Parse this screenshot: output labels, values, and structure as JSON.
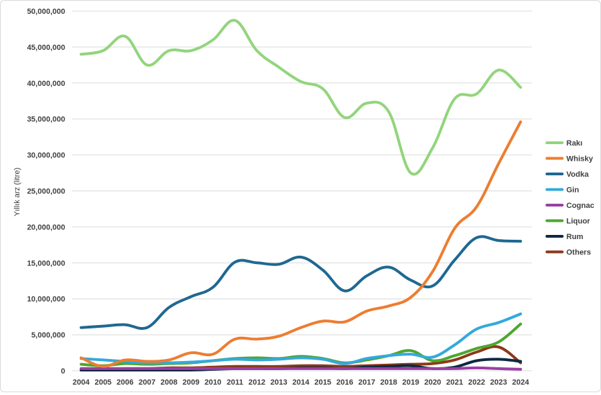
{
  "chart_data": {
    "type": "line",
    "title": "",
    "xlabel": "",
    "ylabel": "Yıllık arz (litre)",
    "x": [
      "2004",
      "2005",
      "2006",
      "2007",
      "2008",
      "2009",
      "2010",
      "2011",
      "2012",
      "2013",
      "2014",
      "2015",
      "2016",
      "2017",
      "2018",
      "2019",
      "2020",
      "2021",
      "2022",
      "2023",
      "2024"
    ],
    "ylim": [
      0,
      50000000
    ],
    "yticks": [
      0,
      5000000,
      10000000,
      15000000,
      20000000,
      25000000,
      30000000,
      35000000,
      40000000,
      45000000,
      50000000
    ],
    "ytick_labels": [
      "0",
      "5,000,000",
      "10,000,000",
      "15,000,000",
      "20,000,000",
      "25,000,000",
      "30,000,000",
      "35,000,000",
      "40,000,000",
      "45,000,000",
      "50,000,000"
    ],
    "grid": true,
    "legend_position": "right",
    "series": [
      {
        "name": "Rakı",
        "color": "#92d57c",
        "values": [
          44000000,
          44500000,
          46500000,
          42500000,
          44500000,
          44500000,
          46000000,
          48700000,
          44500000,
          42200000,
          40200000,
          39200000,
          35200000,
          37200000,
          36000000,
          27500000,
          31000000,
          37800000,
          38500000,
          41800000,
          39400000
        ]
      },
      {
        "name": "Whisky",
        "color": "#ed7d31",
        "values": [
          1800000,
          600000,
          1500000,
          1300000,
          1500000,
          2500000,
          2300000,
          4400000,
          4400000,
          4800000,
          6000000,
          6900000,
          6800000,
          8300000,
          9000000,
          10200000,
          13800000,
          19800000,
          22800000,
          28800000,
          34600000
        ]
      },
      {
        "name": "Vodka",
        "color": "#1f6891",
        "values": [
          6000000,
          6200000,
          6400000,
          6000000,
          8800000,
          10300000,
          11600000,
          15100000,
          15000000,
          14800000,
          15800000,
          14000000,
          11100000,
          13200000,
          14400000,
          12600000,
          11800000,
          15400000,
          18500000,
          18100000,
          18000000
        ]
      },
      {
        "name": "Gin",
        "color": "#34a9dc",
        "values": [
          1700000,
          1500000,
          1300000,
          1100000,
          1100000,
          1200000,
          1400000,
          1600000,
          1500000,
          1600000,
          1800000,
          1600000,
          1000000,
          1700000,
          2100000,
          2300000,
          1900000,
          3600000,
          5800000,
          6700000,
          7900000
        ]
      },
      {
        "name": "Cognac",
        "color": "#9b3fa4",
        "values": [
          300000,
          300000,
          300000,
          300000,
          300000,
          300000,
          300000,
          300000,
          300000,
          300000,
          300000,
          300000,
          300000,
          300000,
          300000,
          300000,
          300000,
          300000,
          400000,
          300000,
          200000
        ]
      },
      {
        "name": "Liquor",
        "color": "#4ea72e",
        "values": [
          900000,
          700000,
          1000000,
          900000,
          1000000,
          1100000,
          1400000,
          1700000,
          1800000,
          1700000,
          2000000,
          1700000,
          1100000,
          1500000,
          2100000,
          2800000,
          1400000,
          2100000,
          3100000,
          4000000,
          6500000
        ]
      },
      {
        "name": "Rum",
        "color": "#0e2841",
        "values": [
          100000,
          100000,
          100000,
          100000,
          100000,
          100000,
          200000,
          300000,
          300000,
          300000,
          400000,
          400000,
          300000,
          500000,
          600000,
          700000,
          300000,
          500000,
          1400000,
          1600000,
          1300000
        ]
      },
      {
        "name": "Others",
        "color": "#8b3a1a",
        "values": [
          100000,
          200000,
          300000,
          300000,
          400000,
          400000,
          500000,
          600000,
          600000,
          600000,
          700000,
          700000,
          600000,
          700000,
          800000,
          900000,
          1000000,
          1500000,
          2600000,
          3300000,
          1100000
        ]
      }
    ]
  }
}
